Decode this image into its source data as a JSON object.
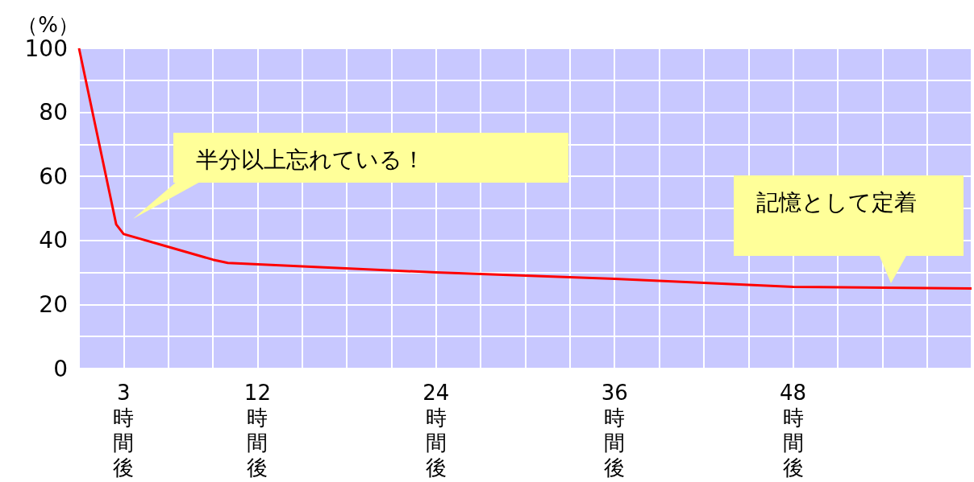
{
  "chart_data": {
    "type": "line",
    "ylabel": "（%）",
    "x": [
      0,
      2.5,
      3,
      6,
      9,
      10,
      24,
      36,
      48,
      60
    ],
    "series": [
      {
        "color": "#ff0000",
        "values": [
          100,
          45,
          42,
          38,
          34,
          33,
          30,
          28,
          25.5,
          25
        ]
      }
    ],
    "xlim": [
      0,
      60
    ],
    "xticks": [
      {
        "value": 0,
        "label": null
      },
      {
        "value": 3,
        "label": "3時間後"
      },
      {
        "value": 6,
        "label": null
      },
      {
        "value": 9,
        "label": null
      },
      {
        "value": 12,
        "label": "12時間後"
      },
      {
        "value": 15,
        "label": null
      },
      {
        "value": 18,
        "label": null
      },
      {
        "value": 21,
        "label": null
      },
      {
        "value": 24,
        "label": "24時間後"
      },
      {
        "value": 27,
        "label": null
      },
      {
        "value": 30,
        "label": null
      },
      {
        "value": 33,
        "label": null
      },
      {
        "value": 36,
        "label": "36時間後"
      },
      {
        "value": 39,
        "label": null
      },
      {
        "value": 42,
        "label": null
      },
      {
        "value": 45,
        "label": null
      },
      {
        "value": 48,
        "label": "48時間後"
      },
      {
        "value": 51,
        "label": null
      },
      {
        "value": 54,
        "label": null
      },
      {
        "value": 57,
        "label": null
      },
      {
        "value": 60,
        "label": null
      }
    ],
    "ylim": [
      0,
      100
    ],
    "yticks": [
      0,
      {
        "value": 10,
        "label": null
      },
      20,
      {
        "value": 30,
        "label": null
      },
      40,
      {
        "value": 50,
        "label": null
      },
      60,
      {
        "value": 70,
        "label": null
      },
      80,
      {
        "value": 90,
        "label": null
      },
      100
    ],
    "grid": true,
    "marker": "none",
    "line_style": "solid",
    "annotations": [
      "半分以上忘れている！",
      "記憶として定着"
    ]
  }
}
